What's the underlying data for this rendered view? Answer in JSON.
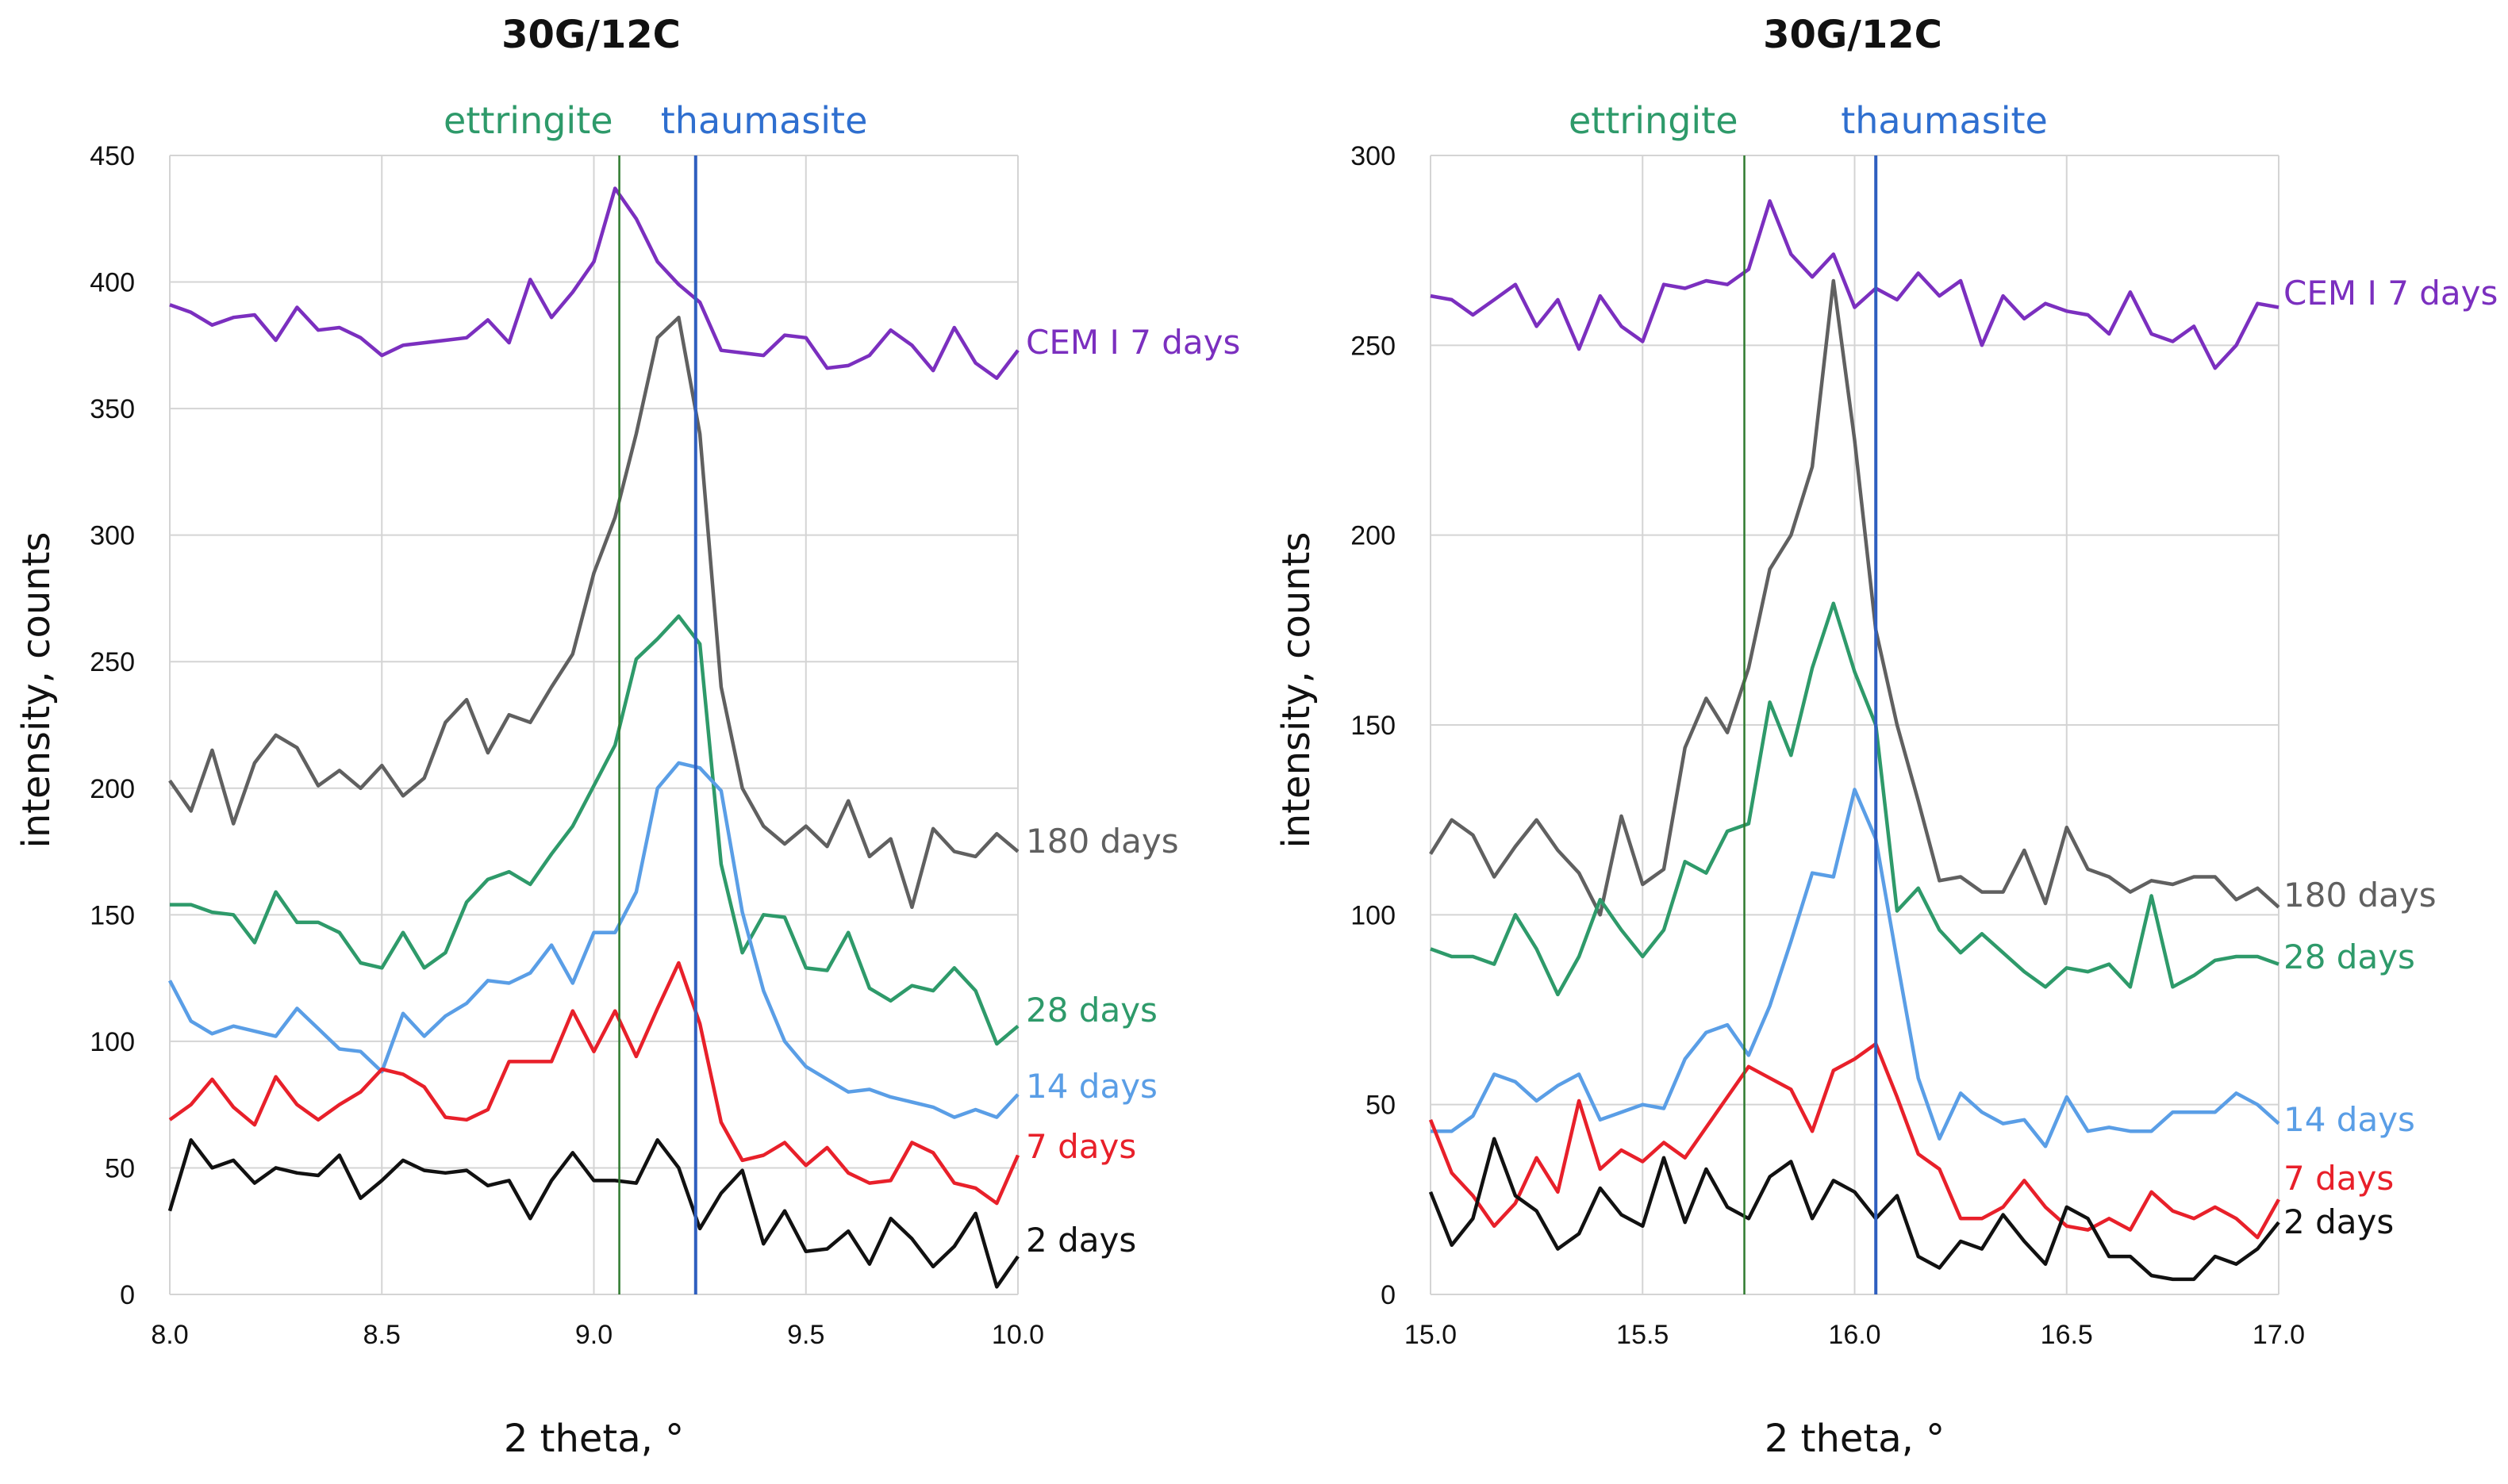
{
  "chart_data": [
    {
      "type": "line",
      "title": "30G/12C",
      "xlabel": "2 theta, °",
      "ylabel": "intensity, counts",
      "xlim": [
        8.0,
        10.0
      ],
      "ylim": [
        0,
        450
      ],
      "xticks": [
        "8.0",
        "8.5",
        "9.0",
        "9.5",
        "10.0"
      ],
      "yticks": [
        "0",
        "50",
        "100",
        "150",
        "200",
        "250",
        "300",
        "350",
        "400",
        "450"
      ],
      "grid": true,
      "markers": [
        {
          "label": "ettringite",
          "x": 9.06,
          "color": "#2e9a6a",
          "line_color": "#2f7a2f"
        },
        {
          "label": "thaumasite",
          "x": 9.24,
          "color": "#2f6fcf",
          "line_color": "#2f5fbf"
        }
      ],
      "x": [
        8.0,
        8.05,
        8.1,
        8.15,
        8.2,
        8.25,
        8.3,
        8.35,
        8.4,
        8.45,
        8.5,
        8.55,
        8.6,
        8.65,
        8.7,
        8.75,
        8.8,
        8.85,
        8.9,
        8.95,
        9.0,
        9.05,
        9.1,
        9.15,
        9.2,
        9.25,
        9.3,
        9.35,
        9.4,
        9.45,
        9.5,
        9.55,
        9.6,
        9.65,
        9.7,
        9.75,
        9.8,
        9.85,
        9.9,
        9.95,
        10.0
      ],
      "series": [
        {
          "name": "CEM I 7 days",
          "color": "#7b2fbf",
          "values": [
            391,
            388,
            383,
            386,
            387,
            377,
            390,
            381,
            382,
            378,
            371,
            375,
            376,
            377,
            378,
            385,
            376,
            401,
            386,
            396,
            408,
            437,
            425,
            408,
            399,
            392,
            373,
            372,
            371,
            379,
            378,
            366,
            367,
            371,
            381,
            375,
            365,
            382,
            368,
            362,
            373
          ]
        },
        {
          "name": "180 days",
          "color": "#606060",
          "values": [
            203,
            191,
            215,
            186,
            210,
            221,
            216,
            201,
            207,
            200,
            209,
            197,
            204,
            226,
            235,
            214,
            229,
            226,
            240,
            253,
            285,
            307,
            340,
            378,
            386,
            340,
            240,
            200,
            185,
            178,
            185,
            177,
            195,
            173,
            180,
            153,
            184,
            175,
            173,
            182,
            175
          ]
        },
        {
          "name": "28 days",
          "color": "#2e9a6a",
          "values": [
            154,
            154,
            151,
            150,
            139,
            159,
            147,
            147,
            143,
            131,
            129,
            143,
            129,
            135,
            155,
            164,
            167,
            162,
            174,
            185,
            201,
            217,
            251,
            259,
            268,
            257,
            170,
            135,
            150,
            149,
            129,
            128,
            143,
            121,
            116,
            122,
            120,
            129,
            120,
            99,
            106
          ]
        },
        {
          "name": "14 days",
          "color": "#5a9ee6",
          "values": [
            124,
            108,
            103,
            106,
            104,
            102,
            113,
            105,
            97,
            96,
            88,
            111,
            102,
            110,
            115,
            124,
            123,
            127,
            138,
            123,
            143,
            143,
            159,
            200,
            210,
            208,
            199,
            151,
            120,
            100,
            90,
            85,
            80,
            81,
            78,
            76,
            74,
            70,
            73,
            70,
            79
          ]
        },
        {
          "name": "7 days",
          "color": "#e8202a",
          "values": [
            69,
            75,
            85,
            74,
            67,
            86,
            75,
            69,
            75,
            80,
            89,
            87,
            82,
            70,
            69,
            73,
            92,
            92,
            92,
            112,
            96,
            112,
            94,
            113,
            131,
            107,
            68,
            53,
            55,
            60,
            51,
            58,
            48,
            44,
            45,
            60,
            56,
            44,
            42,
            36,
            55
          ]
        },
        {
          "name": "2 days",
          "color": "#111111",
          "values": [
            33,
            61,
            50,
            53,
            44,
            50,
            48,
            47,
            55,
            38,
            45,
            53,
            49,
            48,
            49,
            43,
            45,
            30,
            45,
            56,
            45,
            45,
            44,
            61,
            50,
            26,
            40,
            49,
            20,
            33,
            17,
            18,
            25,
            12,
            30,
            22,
            11,
            19,
            32,
            3,
            15
          ]
        }
      ]
    },
    {
      "type": "line",
      "title": "30G/12C",
      "xlabel": "2 theta, °",
      "ylabel": "intensity, counts",
      "xlim": [
        15.0,
        17.0
      ],
      "ylim": [
        0,
        300
      ],
      "xticks": [
        "15.0",
        "15.5",
        "16.0",
        "16.5",
        "17.0"
      ],
      "yticks": [
        "0",
        "50",
        "100",
        "150",
        "200",
        "250",
        "300"
      ],
      "grid": true,
      "markers": [
        {
          "label": "ettringite",
          "x": 15.74,
          "color": "#2e9a6a",
          "line_color": "#2f7a2f"
        },
        {
          "label": "thaumasite",
          "x": 16.05,
          "color": "#2f6fcf",
          "line_color": "#2f5fbf"
        }
      ],
      "x": [
        15.0,
        15.05,
        15.1,
        15.15,
        15.2,
        15.25,
        15.3,
        15.35,
        15.4,
        15.45,
        15.5,
        15.55,
        15.6,
        15.65,
        15.7,
        15.75,
        15.8,
        15.85,
        15.9,
        15.95,
        16.0,
        16.05,
        16.1,
        16.15,
        16.2,
        16.25,
        16.3,
        16.35,
        16.4,
        16.45,
        16.5,
        16.55,
        16.6,
        16.65,
        16.7,
        16.75,
        16.8,
        16.85,
        16.9,
        16.95,
        17.0
      ],
      "series": [
        {
          "name": "CEM I 7 days",
          "color": "#7b2fbf",
          "values": [
            263,
            262,
            258,
            262,
            266,
            255,
            262,
            249,
            263,
            255,
            251,
            266,
            265,
            267,
            266,
            270,
            288,
            274,
            268,
            274,
            260,
            265,
            262,
            269,
            263,
            267,
            250,
            263,
            257,
            261,
            259,
            258,
            253,
            264,
            253,
            251,
            255,
            244,
            250,
            261,
            260
          ]
        },
        {
          "name": "180 days",
          "color": "#606060",
          "values": [
            116,
            125,
            121,
            110,
            118,
            125,
            117,
            111,
            100,
            126,
            108,
            112,
            144,
            157,
            148,
            165,
            191,
            200,
            218,
            267,
            225,
            175,
            150,
            130,
            109,
            110,
            106,
            106,
            117,
            103,
            123,
            112,
            110,
            106,
            109,
            108,
            110,
            110,
            104,
            107,
            102
          ]
        },
        {
          "name": "28 days",
          "color": "#2e9a6a",
          "values": [
            91,
            89,
            89,
            87,
            100,
            91,
            79,
            89,
            104,
            96,
            89,
            96,
            114,
            111,
            122,
            124,
            156,
            142,
            165,
            182,
            164,
            150,
            101,
            107,
            96,
            90,
            95,
            90,
            85,
            81,
            86,
            85,
            87,
            81,
            105,
            81,
            84,
            88,
            89,
            89,
            87
          ]
        },
        {
          "name": "14 days",
          "color": "#5a9ee6",
          "values": [
            43,
            43,
            47,
            58,
            56,
            51,
            55,
            58,
            46,
            48,
            50,
            49,
            62,
            69,
            71,
            63,
            76,
            93,
            111,
            110,
            133,
            120,
            88,
            57,
            41,
            53,
            48,
            45,
            46,
            39,
            52,
            43,
            44,
            43,
            43,
            48,
            48,
            48,
            53,
            50,
            45
          ]
        },
        {
          "name": "7 days",
          "color": "#e8202a",
          "values": [
            46,
            32,
            26,
            18,
            24,
            36,
            27,
            51,
            33,
            38,
            35,
            40,
            36,
            44,
            52,
            60,
            57,
            54,
            43,
            59,
            62,
            66,
            52,
            37,
            33,
            20,
            20,
            23,
            30,
            23,
            18,
            17,
            20,
            17,
            27,
            22,
            20,
            23,
            20,
            15,
            25
          ]
        },
        {
          "name": "2 days",
          "color": "#111111",
          "values": [
            27,
            13,
            20,
            41,
            26,
            22,
            12,
            16,
            28,
            21,
            18,
            36,
            19,
            33,
            23,
            20,
            31,
            35,
            20,
            30,
            27,
            20,
            26,
            10,
            7,
            14,
            12,
            21,
            14,
            8,
            23,
            20,
            10,
            10,
            5,
            4,
            4,
            10,
            8,
            12,
            19
          ]
        }
      ]
    }
  ]
}
